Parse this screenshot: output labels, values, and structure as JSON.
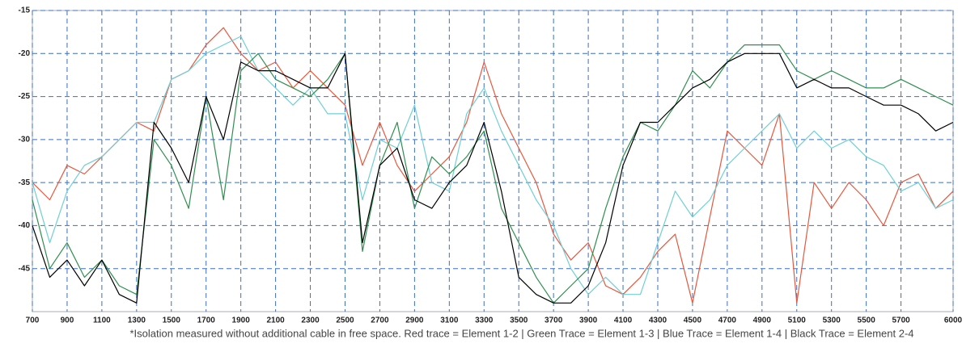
{
  "chart_data": {
    "type": "line",
    "caption": "*Isolation measured without additional cable in free space. Red trace = Element 1-2 | Green Trace = Element 1-3 | Blue Trace = Element 1-4 | Black Trace = Element 2-4",
    "x": [
      700,
      800,
      900,
      1000,
      1100,
      1200,
      1300,
      1400,
      1500,
      1600,
      1700,
      1800,
      1900,
      2000,
      2100,
      2200,
      2300,
      2400,
      2500,
      2600,
      2700,
      2800,
      2900,
      3000,
      3100,
      3200,
      3300,
      3400,
      3500,
      3600,
      3700,
      3800,
      3900,
      4000,
      4100,
      4200,
      4300,
      4400,
      4500,
      4600,
      4700,
      4800,
      4900,
      5000,
      5100,
      5200,
      5300,
      5400,
      5500,
      5600,
      5700,
      5800,
      5900,
      6000
    ],
    "series": [
      {
        "color": "#e8573c",
        "values": [
          -35,
          -37,
          -33,
          -34,
          -32,
          -30,
          -28,
          -29,
          -23,
          -22,
          -19,
          -17,
          -20,
          -22,
          -21,
          -24,
          -22,
          -24,
          -26,
          -33,
          -28,
          -33,
          -36,
          -34,
          -32,
          -28,
          -21,
          -27,
          -31,
          -35,
          -41,
          -44,
          -42,
          -47,
          -48,
          -46,
          -43,
          -41,
          -49,
          -39,
          -29,
          -31,
          -33,
          -27,
          -49,
          -35,
          -38,
          -35,
          -37,
          -40,
          -35,
          -34,
          -38,
          -36
        ]
      },
      {
        "color": "#6fcfd6",
        "values": [
          -35,
          -42,
          -36,
          -33,
          -32,
          -30,
          -28,
          -28,
          -23,
          -22,
          -20,
          -19,
          -18,
          -22,
          -24,
          -26,
          -24,
          -27,
          -27,
          -37,
          -30,
          -31,
          -26,
          -35,
          -36,
          -27,
          -24,
          -29,
          -33,
          -37,
          -40,
          -45,
          -48,
          -46,
          -48,
          -48,
          -42,
          -36,
          -39,
          -37,
          -33,
          -31,
          -29,
          -27,
          -31,
          -29,
          -31,
          -30,
          -32,
          -33,
          -36,
          -35,
          -38,
          -37
        ]
      },
      {
        "color": "#2f8f4f",
        "values": [
          -37,
          -45,
          -42,
          -46,
          -44,
          -47,
          -48,
          -30,
          -33,
          -38,
          -25,
          -37,
          -22,
          -20,
          -23,
          -24,
          -25,
          -23,
          -20,
          -43,
          -33,
          -28,
          -38,
          -32,
          -34,
          -32,
          -29,
          -38,
          -42,
          -46,
          -49,
          -47,
          -45,
          -38,
          -32,
          -28,
          -29,
          -26,
          -22,
          -24,
          -21,
          -19,
          -19,
          -19,
          -22,
          -23,
          -22,
          -23,
          -24,
          -24,
          -23,
          -24,
          -25,
          -26
        ]
      },
      {
        "color": "#000000",
        "values": [
          -40,
          -46,
          -44,
          -47,
          -44,
          -48,
          -49,
          -28,
          -31,
          -35,
          -25,
          -30,
          -21,
          -22,
          -22,
          -23,
          -24,
          -24,
          -20,
          -42,
          -33,
          -31,
          -37,
          -38,
          -35,
          -33,
          -28,
          -36,
          -46,
          -48,
          -49,
          -49,
          -47,
          -42,
          -33,
          -28,
          -28,
          -26,
          -24,
          -23,
          -21,
          -20,
          -20,
          -20,
          -24,
          -23,
          -24,
          -24,
          -25,
          -26,
          -26,
          -27,
          -29,
          -28
        ]
      }
    ],
    "xlim": [
      700,
      6000
    ],
    "ylim": [
      -50,
      -15
    ],
    "xticks": [
      700,
      900,
      1100,
      1300,
      1500,
      1700,
      1900,
      2100,
      2300,
      2500,
      2700,
      2900,
      3100,
      3300,
      3500,
      3700,
      3900,
      4100,
      4300,
      4500,
      4700,
      4900,
      5100,
      5300,
      5500,
      5700,
      6000
    ],
    "yticks": [
      -15,
      -20,
      -25,
      -30,
      -35,
      -40,
      -45
    ],
    "grid": true
  }
}
